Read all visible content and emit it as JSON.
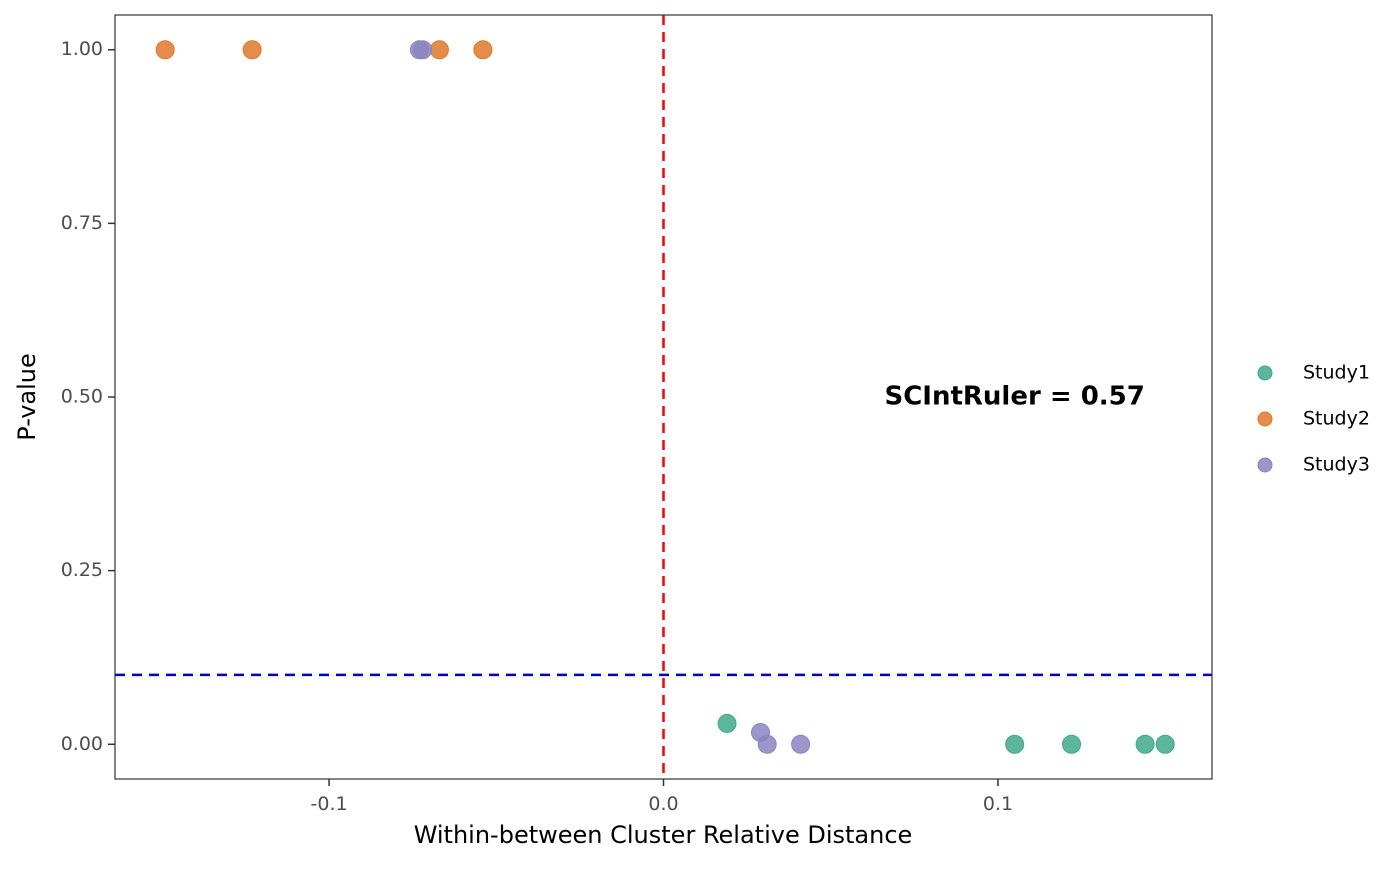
{
  "chart_data": {
    "type": "scatter",
    "title": "",
    "xlabel": "Within-between Cluster Relative Distance",
    "ylabel": "P-value",
    "xlim": [
      -0.164,
      0.164
    ],
    "ylim": [
      -0.05,
      1.05
    ],
    "xticks": [
      -0.1,
      0.0,
      0.1
    ],
    "xtick_labels": [
      "-0.1",
      "0.0",
      "0.1"
    ],
    "yticks": [
      0.0,
      0.25,
      0.5,
      0.75,
      1.0
    ],
    "ytick_labels": [
      "0.00",
      "0.25",
      "0.50",
      "0.75",
      "1.00"
    ],
    "grid": false,
    "legend_position": "right",
    "reference_lines": [
      {
        "orientation": "vertical",
        "value": 0.0,
        "color": "#ff0000",
        "style": "dashed"
      },
      {
        "orientation": "horizontal",
        "value": 0.1,
        "color": "#0000cd",
        "style": "dashed"
      }
    ],
    "annotation": {
      "text": "SCIntRuler = 0.57",
      "x": 0.105,
      "y": 0.5
    },
    "series": [
      {
        "name": "Study1",
        "color": "#3fa98a",
        "points": [
          {
            "x": 0.019,
            "y": 0.03
          },
          {
            "x": 0.105,
            "y": 0.0
          },
          {
            "x": 0.122,
            "y": 0.0
          },
          {
            "x": 0.144,
            "y": 0.0
          },
          {
            "x": 0.15,
            "y": 0.0
          }
        ]
      },
      {
        "name": "Study2",
        "color": "#e0782a",
        "points": [
          {
            "x": -0.149,
            "y": 1.0
          },
          {
            "x": -0.123,
            "y": 1.0
          },
          {
            "x": -0.067,
            "y": 1.0
          },
          {
            "x": -0.054,
            "y": 1.0
          }
        ]
      },
      {
        "name": "Study3",
        "color": "#8a85c2",
        "points": [
          {
            "x": -0.073,
            "y": 1.0
          },
          {
            "x": -0.072,
            "y": 1.0
          },
          {
            "x": 0.029,
            "y": 0.017
          },
          {
            "x": 0.031,
            "y": 0.0
          },
          {
            "x": 0.041,
            "y": 0.0
          }
        ]
      }
    ]
  }
}
